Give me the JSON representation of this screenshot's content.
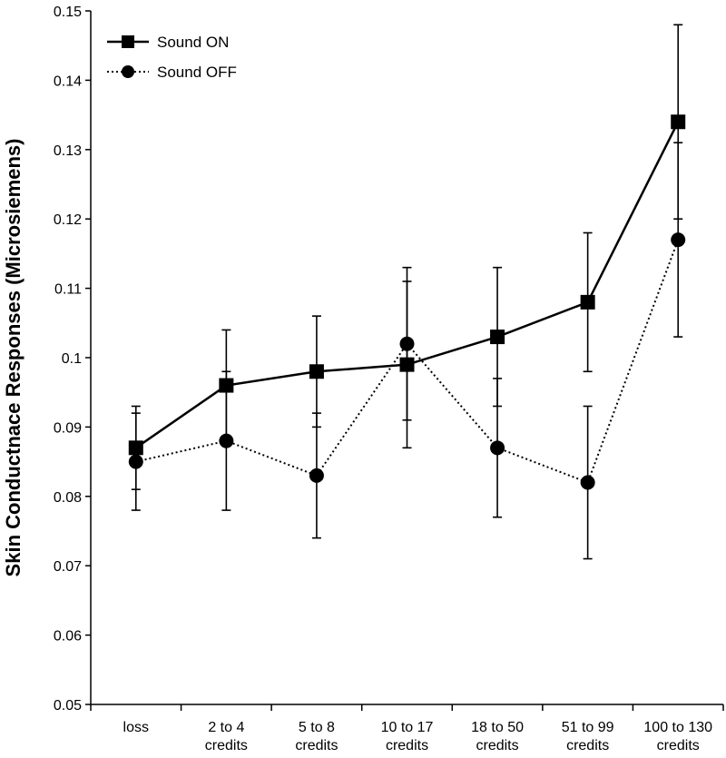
{
  "chart_data": {
    "type": "line",
    "title": "",
    "xlabel": "",
    "ylabel": "Skin Conductnace Responses (Microsiemens)",
    "ylim": [
      0.05,
      0.15
    ],
    "yticks": [
      "0.05",
      "0.06",
      "0.07",
      "0.08",
      "0.09",
      "0.1",
      "0.11",
      "0.12",
      "0.13",
      "0.14",
      "0.15"
    ],
    "categories": [
      [
        "loss"
      ],
      [
        "2 to 4",
        "credits"
      ],
      [
        "5 to 8",
        "credits"
      ],
      [
        "10 to 17",
        "credits"
      ],
      [
        "18 to 50",
        "credits"
      ],
      [
        "51 to 99",
        "credits"
      ],
      [
        "100 to 130",
        "credits"
      ]
    ],
    "grid": false,
    "legend": "top-left",
    "series": [
      {
        "name": "Sound ON",
        "marker": "square",
        "line_style": "solid",
        "values": [
          0.087,
          0.096,
          0.098,
          0.099,
          0.103,
          0.108,
          0.134
        ],
        "error": [
          0.006,
          0.008,
          0.008,
          0.012,
          0.01,
          0.01,
          0.014
        ]
      },
      {
        "name": "Sound OFF",
        "marker": "circle",
        "line_style": "dotted",
        "values": [
          0.085,
          0.088,
          0.083,
          0.102,
          0.087,
          0.082,
          0.117
        ],
        "error": [
          0.007,
          0.01,
          0.009,
          0.011,
          0.01,
          0.011,
          0.014
        ]
      }
    ]
  }
}
